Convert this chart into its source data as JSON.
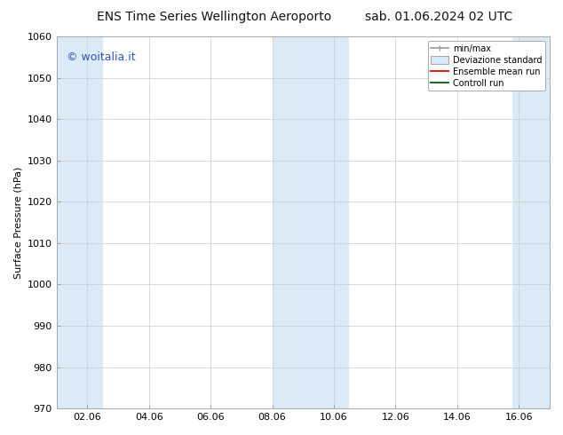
{
  "title_left": "ENS Time Series Wellington Aeroporto",
  "title_right": "sab. 01.06.2024 02 UTC",
  "ylabel": "Surface Pressure (hPa)",
  "ylim": [
    970,
    1060
  ],
  "yticks": [
    970,
    980,
    990,
    1000,
    1010,
    1020,
    1030,
    1040,
    1050,
    1060
  ],
  "xtick_labels": [
    "02.06",
    "04.06",
    "06.06",
    "08.06",
    "10.06",
    "12.06",
    "14.06",
    "16.06"
  ],
  "xtick_positions": [
    1,
    3,
    5,
    7,
    9,
    11,
    13,
    15
  ],
  "xlim": [
    0,
    16
  ],
  "shaded_bands": [
    {
      "x_start": 0.0,
      "x_end": 1.5,
      "color": "#daeaf7"
    },
    {
      "x_start": 7.0,
      "x_end": 9.5,
      "color": "#daeaf7"
    },
    {
      "x_start": 14.8,
      "x_end": 16.0,
      "color": "#daeaf7"
    }
  ],
  "watermark": "© woitalia.it",
  "watermark_color": "#3355bb",
  "legend_labels": [
    "min/max",
    "Deviazione standard",
    "Ensemble mean run",
    "Controll run"
  ],
  "legend_colors_line": [
    "#999999",
    "#bbcfe0",
    "#dd2222",
    "#226622"
  ],
  "legend_patch_color": "#daeaf7",
  "bg_color": "#ffffff",
  "plot_bg_color": "#ffffff",
  "title_fontsize": 10,
  "tick_fontsize": 8,
  "ylabel_fontsize": 8,
  "watermark_fontsize": 9
}
